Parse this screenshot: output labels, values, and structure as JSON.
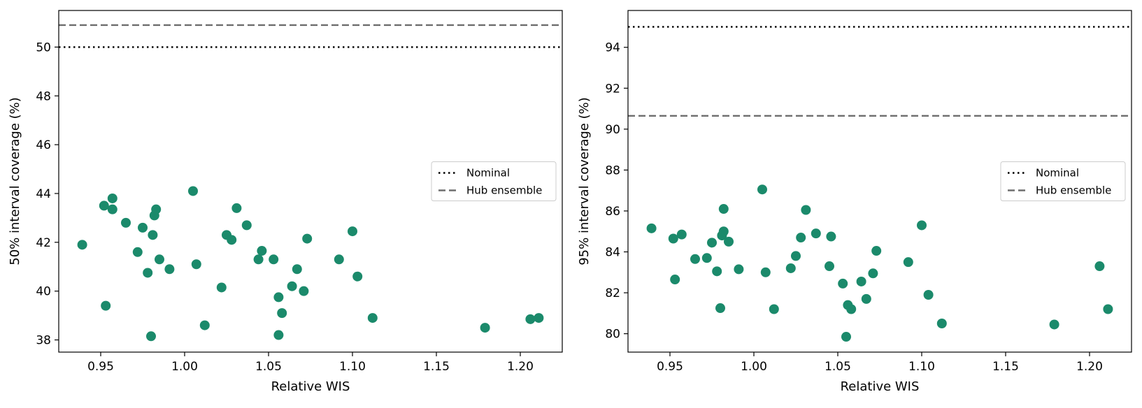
{
  "colors": {
    "point": "#1b8a6b",
    "nominal_line": "#000000",
    "ensemble_line": "#6e6e6e"
  },
  "chart_data": [
    {
      "type": "scatter",
      "xlabel": "Relative WIS",
      "ylabel": "50% interval coverage (%)",
      "xlim": [
        0.925,
        1.225
      ],
      "ylim": [
        37.5,
        51.5
      ],
      "xticks": [
        0.95,
        1.0,
        1.05,
        1.1,
        1.15,
        1.2
      ],
      "xtick_labels": [
        "0.95",
        "1.00",
        "1.05",
        "1.10",
        "1.15",
        "1.20"
      ],
      "yticks": [
        38,
        40,
        42,
        44,
        46,
        48,
        50
      ],
      "ytick_labels": [
        "38",
        "40",
        "42",
        "44",
        "46",
        "48",
        "50"
      ],
      "grid": false,
      "legend_position": "right",
      "hlines": [
        {
          "name": "Nominal",
          "y": 50.0,
          "style": "dotted"
        },
        {
          "name": "Hub ensemble",
          "y": 50.9,
          "style": "dashed"
        }
      ],
      "points": [
        {
          "x": 0.939,
          "y": 41.9
        },
        {
          "x": 0.952,
          "y": 43.5
        },
        {
          "x": 0.953,
          "y": 39.4
        },
        {
          "x": 0.957,
          "y": 43.8
        },
        {
          "x": 0.957,
          "y": 43.35
        },
        {
          "x": 0.965,
          "y": 42.8
        },
        {
          "x": 0.972,
          "y": 41.6
        },
        {
          "x": 0.975,
          "y": 42.6
        },
        {
          "x": 0.978,
          "y": 40.75
        },
        {
          "x": 0.98,
          "y": 38.15
        },
        {
          "x": 0.981,
          "y": 42.3
        },
        {
          "x": 0.982,
          "y": 43.1
        },
        {
          "x": 0.983,
          "y": 43.35
        },
        {
          "x": 0.985,
          "y": 41.3
        },
        {
          "x": 0.991,
          "y": 40.9
        },
        {
          "x": 1.005,
          "y": 44.1
        },
        {
          "x": 1.007,
          "y": 41.1
        },
        {
          "x": 1.012,
          "y": 38.6
        },
        {
          "x": 1.022,
          "y": 40.15
        },
        {
          "x": 1.025,
          "y": 42.3
        },
        {
          "x": 1.028,
          "y": 42.1
        },
        {
          "x": 1.031,
          "y": 43.4
        },
        {
          "x": 1.037,
          "y": 42.7
        },
        {
          "x": 1.044,
          "y": 41.3
        },
        {
          "x": 1.046,
          "y": 41.65
        },
        {
          "x": 1.053,
          "y": 41.3
        },
        {
          "x": 1.056,
          "y": 39.75
        },
        {
          "x": 1.056,
          "y": 38.2
        },
        {
          "x": 1.058,
          "y": 39.1
        },
        {
          "x": 1.064,
          "y": 40.2
        },
        {
          "x": 1.067,
          "y": 40.9
        },
        {
          "x": 1.071,
          "y": 40.0
        },
        {
          "x": 1.073,
          "y": 42.15
        },
        {
          "x": 1.092,
          "y": 41.3
        },
        {
          "x": 1.1,
          "y": 42.45
        },
        {
          "x": 1.103,
          "y": 40.6
        },
        {
          "x": 1.112,
          "y": 38.9
        },
        {
          "x": 1.179,
          "y": 38.5
        },
        {
          "x": 1.206,
          "y": 38.85
        },
        {
          "x": 1.211,
          "y": 38.9
        }
      ]
    },
    {
      "type": "scatter",
      "xlabel": "Relative WIS",
      "ylabel": "95% interval coverage (%)",
      "xlim": [
        0.925,
        1.225
      ],
      "ylim": [
        79.1,
        95.8
      ],
      "xticks": [
        0.95,
        1.0,
        1.05,
        1.1,
        1.15,
        1.2
      ],
      "xtick_labels": [
        "0.95",
        "1.00",
        "1.05",
        "1.10",
        "1.15",
        "1.20"
      ],
      "yticks": [
        80,
        82,
        84,
        86,
        88,
        90,
        92,
        94
      ],
      "ytick_labels": [
        "80",
        "82",
        "84",
        "86",
        "88",
        "90",
        "92",
        "94"
      ],
      "grid": false,
      "legend_position": "right",
      "hlines": [
        {
          "name": "Nominal",
          "y": 95.0,
          "style": "dotted"
        },
        {
          "name": "Hub ensemble",
          "y": 90.65,
          "style": "dashed"
        }
      ],
      "points": [
        {
          "x": 0.939,
          "y": 85.15
        },
        {
          "x": 0.952,
          "y": 84.65
        },
        {
          "x": 0.953,
          "y": 82.65
        },
        {
          "x": 0.957,
          "y": 84.85
        },
        {
          "x": 0.965,
          "y": 83.65
        },
        {
          "x": 0.972,
          "y": 83.7
        },
        {
          "x": 0.975,
          "y": 84.45
        },
        {
          "x": 0.978,
          "y": 83.05
        },
        {
          "x": 0.98,
          "y": 81.25
        },
        {
          "x": 0.981,
          "y": 84.8
        },
        {
          "x": 0.982,
          "y": 85.0
        },
        {
          "x": 0.982,
          "y": 86.1
        },
        {
          "x": 0.985,
          "y": 84.5
        },
        {
          "x": 0.991,
          "y": 83.15
        },
        {
          "x": 1.005,
          "y": 87.05
        },
        {
          "x": 1.007,
          "y": 83.0
        },
        {
          "x": 1.012,
          "y": 81.2
        },
        {
          "x": 1.022,
          "y": 83.2
        },
        {
          "x": 1.025,
          "y": 83.8
        },
        {
          "x": 1.028,
          "y": 84.7
        },
        {
          "x": 1.031,
          "y": 86.05
        },
        {
          "x": 1.037,
          "y": 84.9
        },
        {
          "x": 1.045,
          "y": 83.3
        },
        {
          "x": 1.046,
          "y": 84.75
        },
        {
          "x": 1.053,
          "y": 82.45
        },
        {
          "x": 1.055,
          "y": 79.85
        },
        {
          "x": 1.056,
          "y": 81.4
        },
        {
          "x": 1.058,
          "y": 81.2
        },
        {
          "x": 1.064,
          "y": 82.55
        },
        {
          "x": 1.067,
          "y": 81.7
        },
        {
          "x": 1.071,
          "y": 82.95
        },
        {
          "x": 1.073,
          "y": 84.05
        },
        {
          "x": 1.092,
          "y": 83.5
        },
        {
          "x": 1.1,
          "y": 85.3
        },
        {
          "x": 1.104,
          "y": 81.9
        },
        {
          "x": 1.112,
          "y": 80.5
        },
        {
          "x": 1.179,
          "y": 80.45
        },
        {
          "x": 1.206,
          "y": 83.3
        },
        {
          "x": 1.211,
          "y": 81.2
        }
      ]
    }
  ]
}
